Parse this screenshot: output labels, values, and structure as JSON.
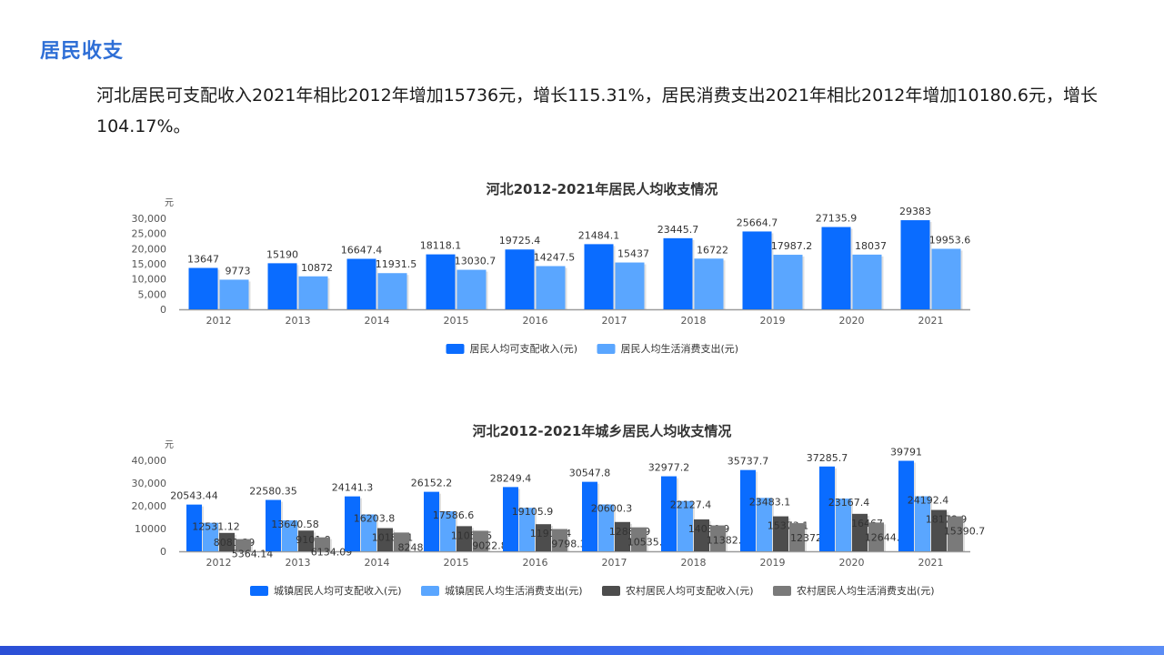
{
  "header": {
    "title": "居民收支",
    "intro": "河北居民可支配收入2021年相比2012年增加15736元，增长115.31%，居民消费支出2021年相比2012年增加10180.6元，增长104.17%。"
  },
  "colors": {
    "accent": "#2f6fd6",
    "series1": "#0a6cff",
    "series2": "#5aa6ff",
    "series3": "#4d4d4d",
    "series4": "#7a7a7a",
    "bottom_bar": "#3d6ef0"
  },
  "chart_data": [
    {
      "type": "bar",
      "title": "河北2012-2021年居民人均收支情况",
      "ylabel": "元",
      "ylim": [
        0,
        30000
      ],
      "yticks": [
        "0",
        "5,000",
        "10,000",
        "15,000",
        "20,000",
        "25,000",
        "30,000"
      ],
      "ytick_values": [
        0,
        5000,
        10000,
        15000,
        20000,
        25000,
        30000
      ],
      "categories": [
        "2012",
        "2013",
        "2014",
        "2015",
        "2016",
        "2017",
        "2018",
        "2019",
        "2020",
        "2021"
      ],
      "legend_position": "bottom",
      "series": [
        {
          "name": "居民人均可支配收入(元)",
          "values": [
            13647,
            15190,
            16647.4,
            18118.1,
            19725.4,
            21484.1,
            23445.7,
            25664.7,
            27135.9,
            29383
          ],
          "labels": [
            "13647",
            "15190",
            "16647.4",
            "18118.1",
            "19725.4",
            "21484.1",
            "23445.7",
            "25664.7",
            "27135.9",
            "29383"
          ]
        },
        {
          "name": "居民人均生活消费支出(元)",
          "values": [
            9773,
            10872,
            11931.5,
            13030.7,
            14247.5,
            15437,
            16722,
            17987.2,
            18037,
            19953.6
          ],
          "labels": [
            "9773",
            "10872",
            "11931.5",
            "13030.7",
            "14247.5",
            "15437",
            "16722",
            "17987.2",
            "18037",
            "19953.6"
          ]
        }
      ]
    },
    {
      "type": "bar",
      "title": "河北2012-2021年城乡居民人均收支情况",
      "ylabel": "元",
      "ylim": [
        0,
        40000
      ],
      "yticks": [
        "0",
        "10000",
        "20,000",
        "30,000",
        "40,000"
      ],
      "ytick_values": [
        0,
        10000,
        20000,
        30000,
        40000
      ],
      "categories": [
        "2012",
        "2013",
        "2014",
        "2015",
        "2016",
        "2017",
        "2018",
        "2019",
        "2020",
        "2021"
      ],
      "legend_position": "bottom",
      "series": [
        {
          "name": "城镇居民人均可支配收入(元)",
          "values": [
            20543.44,
            22580.35,
            24141.3,
            26152.2,
            28249.4,
            30547.8,
            32977.2,
            35737.7,
            37285.7,
            39791
          ],
          "labels": [
            "20543.44",
            "22580.35",
            "24141.3",
            "26152.2",
            "28249.4",
            "30547.8",
            "32977.2",
            "35737.7",
            "37285.7",
            "39791"
          ]
        },
        {
          "name": "城镇居民人均生活消费支出(元)",
          "values": [
            12531.12,
            13640.58,
            16203.8,
            17586.6,
            19105.9,
            20600.3,
            22127.4,
            23483.1,
            23167.4,
            24192.4
          ],
          "labels": [
            "12531.12",
            "13640.58",
            "16203.8",
            "17586.6",
            "19105.9",
            "20600.3",
            "22127.4",
            "23483.1",
            "23167.4",
            "24192.4"
          ]
        },
        {
          "name": "农村居民人均可支配收入(元)",
          "values": [
            8081.39,
            9101.9,
            10186.1,
            11050.5,
            11919.4,
            12880.9,
            14030.9,
            15373.1,
            16467,
            18178.9
          ],
          "labels": [
            "8081.39",
            "9101.9",
            "10186.1",
            "11050.5",
            "11919.4",
            "12880.9",
            "14030.9",
            "15373.1",
            "16467",
            "18178.9"
          ]
        },
        {
          "name": "农村居民人均生活消费支出(元)",
          "values": [
            5364.14,
            6134.09,
            8248,
            9022.8,
            9798.3,
            10535.9,
            11382.8,
            12372,
            12644.2,
            15390.7
          ],
          "labels": [
            "5364.14",
            "6134.09",
            "8248",
            "9022.8",
            "9798.3",
            "10535.9",
            "11382.8",
            "12372",
            "12644.2",
            "15390.7"
          ]
        }
      ]
    }
  ]
}
